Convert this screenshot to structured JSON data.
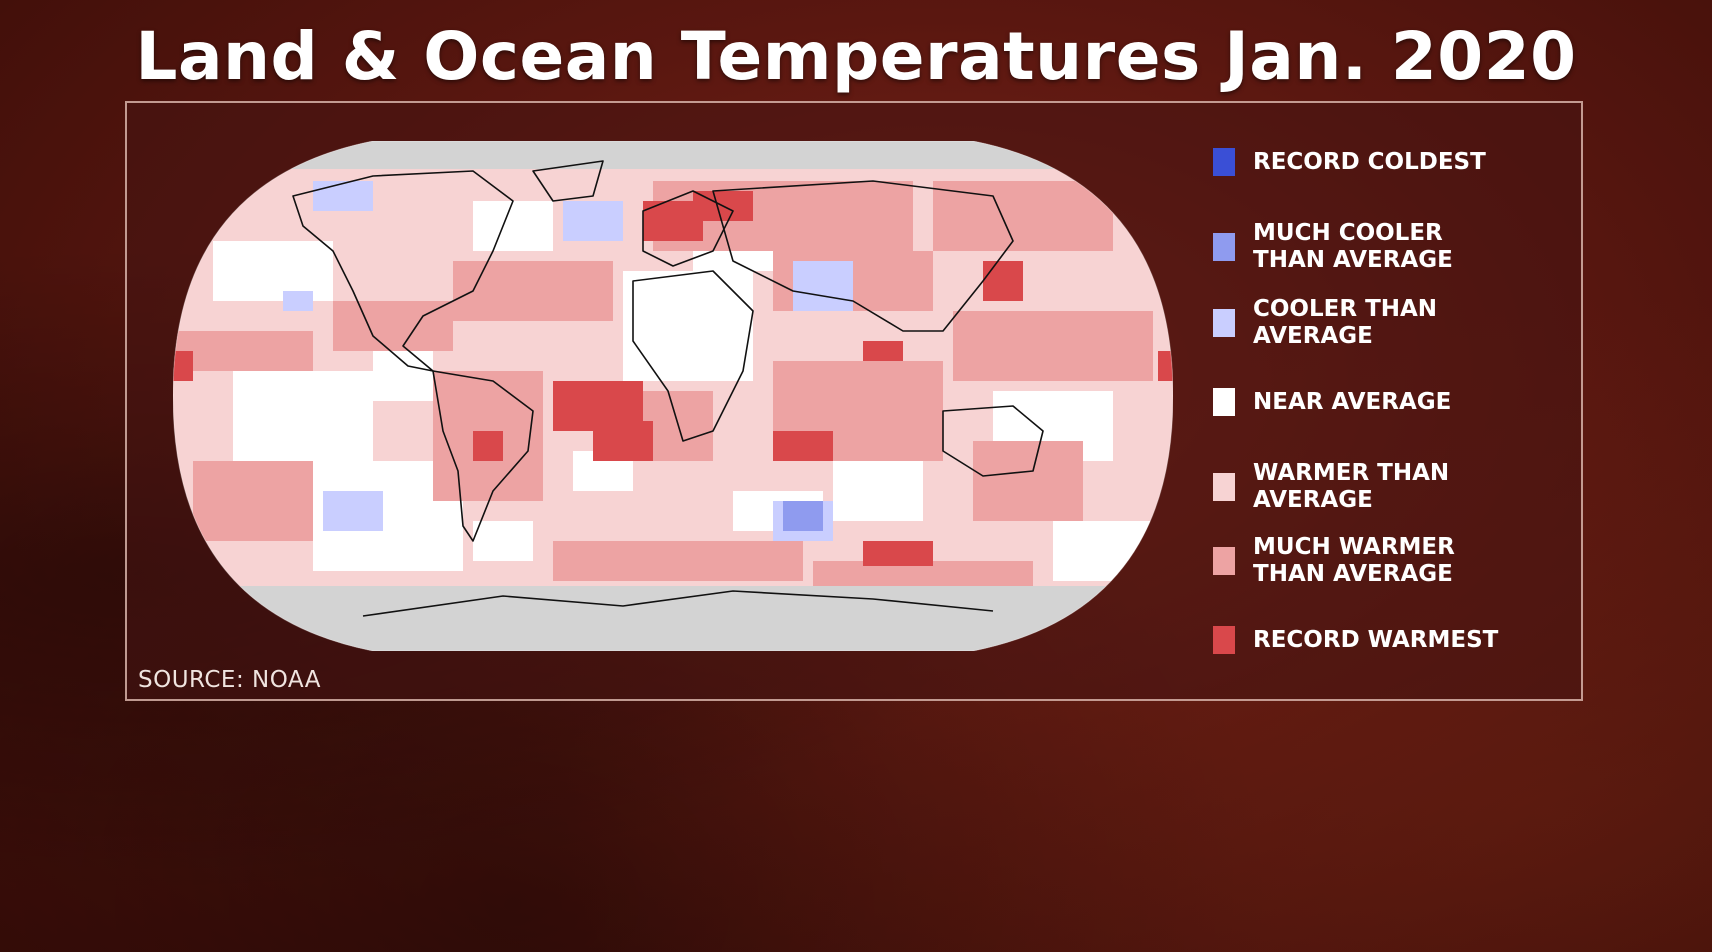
{
  "title": "Land & Ocean Temperatures Jan. 2020",
  "source": "SOURCE: NOAA",
  "legend": [
    {
      "label": "RECORD COLDEST",
      "color": "#3a4fd6"
    },
    {
      "label": "MUCH COOLER\nTHAN AVERAGE",
      "color": "#8f9bef"
    },
    {
      "label": "COOLER THAN\nAVERAGE",
      "color": "#c9ceff"
    },
    {
      "label": "NEAR AVERAGE",
      "color": "#ffffff"
    },
    {
      "label": "WARMER THAN\nAVERAGE",
      "color": "#f7d3d3"
    },
    {
      "label": "MUCH WARMER\nTHAN AVERAGE",
      "color": "#eda3a3"
    },
    {
      "label": "RECORD WARMEST",
      "color": "#d9484b"
    }
  ],
  "colors": {
    "ice": "#d3d3d3",
    "background": "#5a1710"
  }
}
